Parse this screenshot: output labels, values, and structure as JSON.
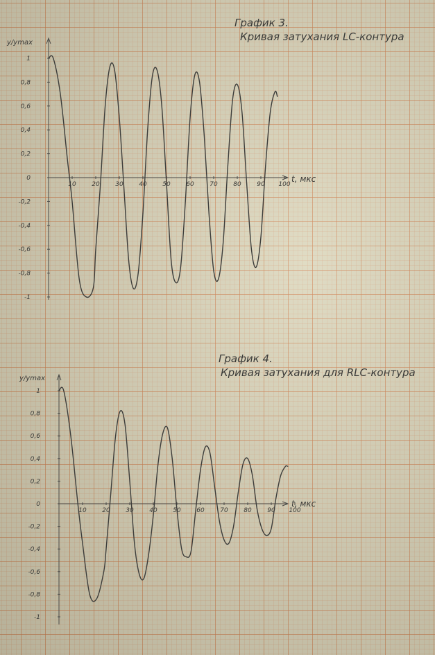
{
  "chart_data": [
    {
      "type": "line",
      "title": "График 3.",
      "subtitle": "Кривая затухания  LC-контура",
      "ylabel": "y/ymax",
      "xlabel": "t, мкс",
      "xlim": [
        0,
        100
      ],
      "ylim": [
        -1,
        1
      ],
      "xticks": [
        "10",
        "20",
        "30",
        "40",
        "50",
        "60",
        "70",
        "80",
        "90",
        "100"
      ],
      "yticks": [
        "1",
        "0,8",
        "0,6",
        "0,4",
        "0,2",
        "0",
        "-0,2",
        "-0,4",
        "-0,6",
        "-0,8",
        "-1"
      ],
      "series": [
        {
          "x": [
            0,
            2,
            5,
            8,
            10,
            13,
            16,
            19,
            20,
            22,
            24,
            26,
            28,
            30,
            32,
            34,
            36,
            38,
            40,
            42,
            44,
            46,
            48,
            50,
            52,
            54,
            56,
            58,
            60,
            62,
            64,
            66,
            68,
            70,
            72,
            74,
            76,
            78,
            80,
            82,
            84,
            86,
            88,
            90,
            92,
            94,
            96,
            97
          ],
          "y": [
            1.0,
            1.0,
            0.7,
            0.15,
            -0.2,
            -0.85,
            -1.0,
            -0.92,
            -0.6,
            -0.05,
            0.6,
            0.93,
            0.9,
            0.5,
            -0.1,
            -0.7,
            -0.93,
            -0.8,
            -0.3,
            0.4,
            0.85,
            0.9,
            0.6,
            -0.05,
            -0.7,
            -0.88,
            -0.75,
            -0.2,
            0.5,
            0.86,
            0.8,
            0.35,
            -0.3,
            -0.78,
            -0.85,
            -0.55,
            0.1,
            0.65,
            0.78,
            0.55,
            -0.05,
            -0.6,
            -0.75,
            -0.5,
            0.1,
            0.55,
            0.72,
            0.68
          ]
        }
      ]
    },
    {
      "type": "line",
      "title": "График 4.",
      "subtitle": "Кривая затухания для RLC-контура",
      "ylabel": "y/ymax",
      "xlabel": "t, мкс",
      "xlim": [
        0,
        100
      ],
      "ylim": [
        -1,
        1
      ],
      "xticks": [
        "10",
        "20",
        "30",
        "40",
        "50",
        "60",
        "70",
        "80",
        "90",
        "100"
      ],
      "yticks": [
        "1",
        "0,8",
        "0,6",
        "0,4",
        "0,2",
        "0",
        "-0,2",
        "-0,4",
        "-0,6",
        "-0,8",
        "-1"
      ],
      "series": [
        {
          "x": [
            0,
            2,
            5,
            8,
            10,
            13,
            16,
            19,
            20,
            22,
            24,
            26,
            28,
            30,
            32,
            34,
            36,
            38,
            40,
            42,
            44,
            46,
            48,
            50,
            52,
            54,
            56,
            58,
            60,
            62,
            64,
            66,
            68,
            70,
            72,
            74,
            76,
            78,
            80,
            82,
            84,
            86,
            88,
            90,
            92,
            94,
            96,
            97
          ],
          "y": [
            1.0,
            1.0,
            0.6,
            0.0,
            -0.35,
            -0.8,
            -0.84,
            -0.6,
            -0.4,
            0.1,
            0.6,
            0.82,
            0.7,
            0.2,
            -0.35,
            -0.62,
            -0.66,
            -0.45,
            -0.1,
            0.35,
            0.62,
            0.67,
            0.4,
            -0.05,
            -0.4,
            -0.47,
            -0.42,
            -0.05,
            0.3,
            0.5,
            0.45,
            0.15,
            -0.15,
            -0.32,
            -0.35,
            -0.2,
            0.1,
            0.35,
            0.4,
            0.25,
            -0.05,
            -0.22,
            -0.28,
            -0.22,
            0.05,
            0.25,
            0.33,
            0.33
          ]
        }
      ]
    }
  ]
}
